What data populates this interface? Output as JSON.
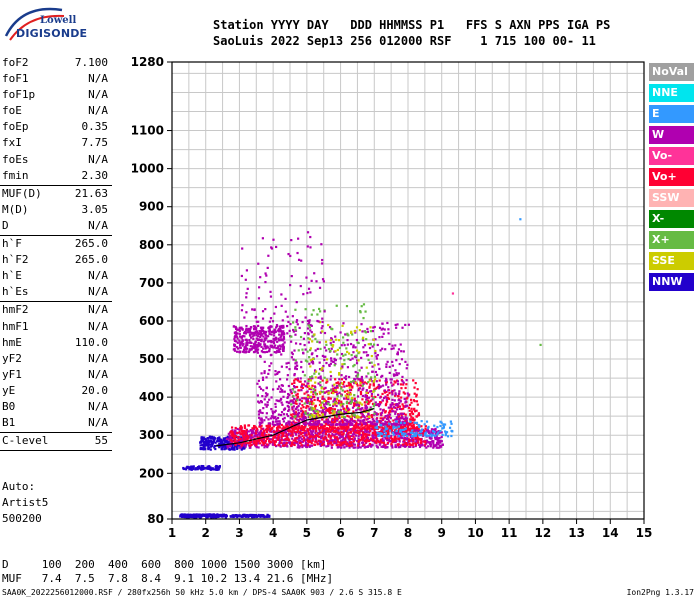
{
  "logo": {
    "line1": "Lowell",
    "line2": "DIGISONDE"
  },
  "header": {
    "line1": "Station YYYY DAY   DDD HHMMSS P1   FFS S AXN PPS IGA PS",
    "line2": "SaoLuis 2022 Sep13 256 012000 RSF    1 715 100 00- 11"
  },
  "params": [
    {
      "name": "foF2",
      "value": "7.100"
    },
    {
      "name": "foF1",
      "value": "N/A"
    },
    {
      "name": "foF1p",
      "value": "N/A"
    },
    {
      "name": "foE",
      "value": "N/A"
    },
    {
      "name": "foEp",
      "value": "0.35"
    },
    {
      "name": "fxI",
      "value": "7.75"
    },
    {
      "name": "foEs",
      "value": "N/A"
    },
    {
      "name": "fmin",
      "value": "2.30",
      "sep_after": true
    },
    {
      "name": "MUF(D)",
      "value": "21.63"
    },
    {
      "name": "M(D)",
      "value": "3.05"
    },
    {
      "name": "D",
      "value": "N/A",
      "sep_after": true
    },
    {
      "name": "h`F",
      "value": "265.0"
    },
    {
      "name": "h`F2",
      "value": "265.0"
    },
    {
      "name": "h`E",
      "value": "N/A"
    },
    {
      "name": "h`Es",
      "value": "N/A",
      "sep_after": true
    },
    {
      "name": "hmF2",
      "value": "N/A"
    },
    {
      "name": "hmF1",
      "value": "N/A"
    },
    {
      "name": "hmE",
      "value": "110.0"
    },
    {
      "name": "yF2",
      "value": "N/A"
    },
    {
      "name": "yF1",
      "value": "N/A"
    },
    {
      "name": "yE",
      "value": "20.0"
    },
    {
      "name": "B0",
      "value": "N/A"
    },
    {
      "name": "B1",
      "value": "N/A",
      "sep_after": true
    },
    {
      "name": "C-level",
      "value": "55",
      "sep_after": true
    }
  ],
  "auto": {
    "line1": "Auto:",
    "line2": "Artist5",
    "line3": "500200"
  },
  "legend": [
    {
      "label": "NoVal",
      "color": "#a0a0a0"
    },
    {
      "label": "NNE",
      "color": "#00e5ee"
    },
    {
      "label": "E",
      "color": "#3399ff"
    },
    {
      "label": "W",
      "color": "#b000b0"
    },
    {
      "label": "Vo-",
      "color": "#ff3399"
    },
    {
      "label": "Vo+",
      "color": "#ff0033"
    },
    {
      "label": "SSW",
      "color": "#ffb3b3"
    },
    {
      "label": "X-",
      "color": "#008800"
    },
    {
      "label": "X+",
      "color": "#66bb44"
    },
    {
      "label": "SSE",
      "color": "#cccc00"
    },
    {
      "label": "NNW",
      "color": "#2200cc"
    }
  ],
  "dtable": {
    "line1": "D     100  200  400  600  800 1000 1500 3000 [km]",
    "line2": "MUF   7.4  7.5  7.8  8.4  9.1 10.2 13.4 21.6 [MHz]"
  },
  "footer": "SAA0K_2022256012000.RSF / 280fx256h 50 kHz 5.0 km / DPS-4 SAA0K 903 / 2.6 S 315.8 E",
  "version": "Ion2Png 1.3.17",
  "chart_data": {
    "type": "scatter",
    "title": "",
    "xlabel": "",
    "ylabel": "",
    "xlim": [
      1,
      15
    ],
    "ylim": [
      80,
      1280
    ],
    "xticks": [
      1,
      2,
      3,
      4,
      5,
      6,
      7,
      8,
      9,
      10,
      11,
      12,
      13,
      14,
      15
    ],
    "yticks": [
      80,
      200,
      300,
      400,
      500,
      600,
      700,
      800,
      900,
      1000,
      1100,
      1280
    ],
    "grid": true,
    "clusters": [
      {
        "name": "E-trace-low",
        "color": "#2200cc",
        "fmin": 1.2,
        "fmax": 2.6,
        "hmin": 87,
        "hmax": 95
      },
      {
        "name": "E-trace-low2",
        "color": "#2200cc",
        "fmin": 2.7,
        "fmax": 3.9,
        "hmin": 88,
        "hmax": 94
      },
      {
        "name": "E-trace-mid",
        "color": "#2200cc",
        "fmin": 1.3,
        "fmax": 2.4,
        "hmin": 212,
        "hmax": 222
      },
      {
        "name": "F-base-nnw",
        "color": "#2200cc",
        "fmin": 1.8,
        "fmax": 3.2,
        "hmin": 265,
        "hmax": 300
      },
      {
        "name": "F-base-w",
        "color": "#b000b0",
        "fmin": 2.6,
        "fmax": 9.0,
        "hmin": 270,
        "hmax": 320
      },
      {
        "name": "F-base-vo",
        "color": "#ff0033",
        "fmin": 2.7,
        "fmax": 8.5,
        "hmin": 275,
        "hmax": 330
      },
      {
        "name": "F-spread-vo",
        "color": "#ff0033",
        "fmin": 4.5,
        "fmax": 8.3,
        "hmin": 320,
        "hmax": 450
      },
      {
        "name": "F-spread-w",
        "color": "#b000b0",
        "fmin": 3.5,
        "fmax": 8.0,
        "hmin": 330,
        "hmax": 600
      },
      {
        "name": "F-spread-x",
        "color": "#66bb44",
        "fmin": 4.5,
        "fmax": 7.0,
        "hmin": 350,
        "hmax": 650
      },
      {
        "name": "F-spread-sse",
        "color": "#cccc00",
        "fmin": 5.0,
        "fmax": 7.0,
        "hmin": 350,
        "hmax": 600
      },
      {
        "name": "F-spread-e",
        "color": "#3399ff",
        "fmin": 7.0,
        "fmax": 9.3,
        "hmin": 300,
        "hmax": 340
      },
      {
        "name": "F2-multihop",
        "color": "#b000b0",
        "fmin": 2.8,
        "fmax": 4.3,
        "hmin": 520,
        "hmax": 590
      },
      {
        "name": "sparse-high",
        "color": "#b000b0",
        "fmin": 3.0,
        "fmax": 5.5,
        "hmin": 600,
        "hmax": 840
      }
    ]
  }
}
